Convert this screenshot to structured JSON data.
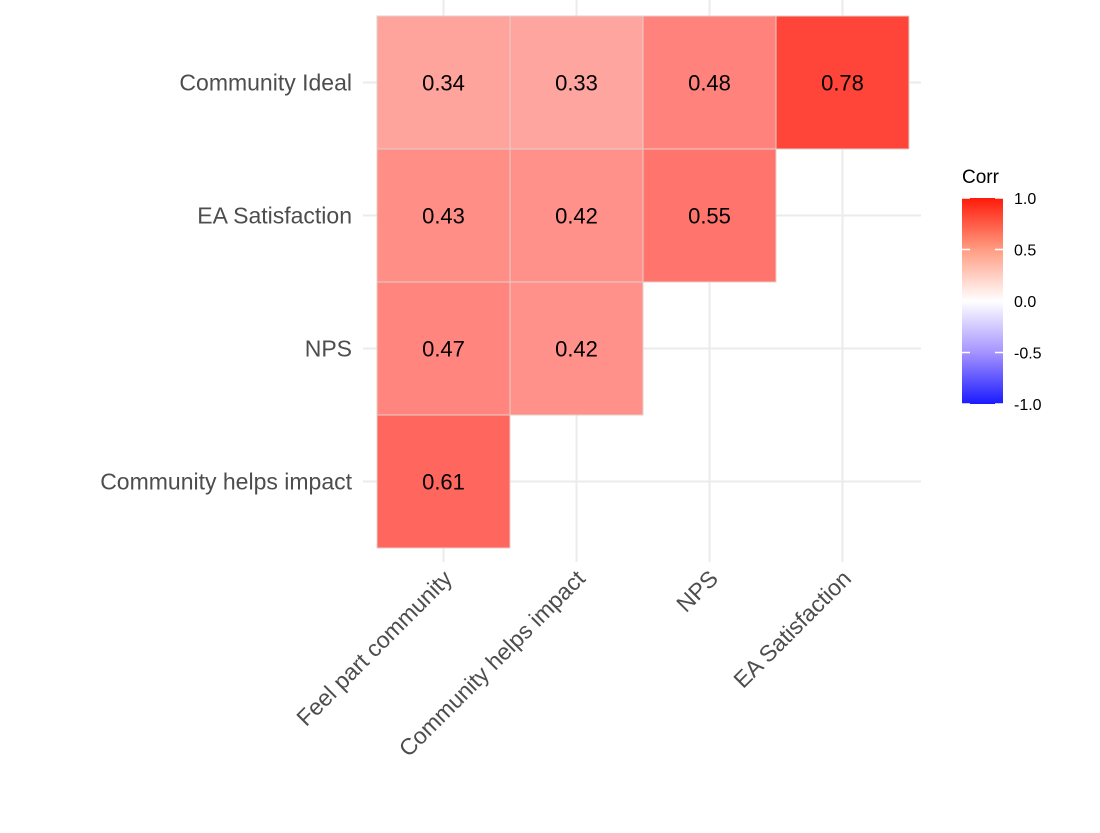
{
  "chart_data": {
    "type": "heatmap",
    "title": "",
    "xlabel": "",
    "ylabel": "",
    "x_categories": [
      "Feel part community",
      "Community helps impact",
      "NPS",
      "EA Satisfaction"
    ],
    "y_categories": [
      "Community Ideal",
      "EA Satisfaction",
      "NPS",
      "Community helps impact"
    ],
    "cells": [
      {
        "x": "Feel part community",
        "y": "Community Ideal",
        "value": 0.34
      },
      {
        "x": "Community helps impact",
        "y": "Community Ideal",
        "value": 0.33
      },
      {
        "x": "NPS",
        "y": "Community Ideal",
        "value": 0.48
      },
      {
        "x": "EA Satisfaction",
        "y": "Community Ideal",
        "value": 0.78
      },
      {
        "x": "Feel part community",
        "y": "EA Satisfaction",
        "value": 0.43
      },
      {
        "x": "Community helps impact",
        "y": "EA Satisfaction",
        "value": 0.42
      },
      {
        "x": "NPS",
        "y": "EA Satisfaction",
        "value": 0.55
      },
      {
        "x": "Feel part community",
        "y": "NPS",
        "value": 0.47
      },
      {
        "x": "Community helps impact",
        "y": "NPS",
        "value": 0.42
      },
      {
        "x": "Feel part community",
        "y": "Community helps impact",
        "value": 0.61
      }
    ],
    "legend": {
      "title": "Corr",
      "position": "right",
      "range": [
        -1.0,
        1.0
      ],
      "ticks": [
        "1.0",
        "0.5",
        "0.0",
        "-0.5",
        "-1.0"
      ],
      "tick_values": [
        1.0,
        0.5,
        0.0,
        -0.5,
        -1.0
      ],
      "colors": {
        "low": "#0000FF",
        "mid": "#FFFFFF",
        "high": "#FF0000"
      }
    },
    "grid": true
  }
}
